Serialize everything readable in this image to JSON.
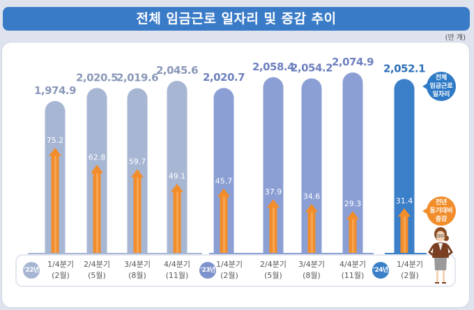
{
  "title": "전체 임금근로 일자리 및 증감 추이",
  "unit_label": "(만 개)",
  "legend": {
    "total_label": "전체\n임금근로\n일자리",
    "change_label": "전년\n동기대비\n증감"
  },
  "colors": {
    "title_bg": "#3a7bc8",
    "bar_2022": "#a7b6d3",
    "bar_2023": "#8b9fd4",
    "bar_2024": "#3a7fc7",
    "arrow": "#f28d2c",
    "total_value_text_2022": "#8a98b8",
    "total_value_text_2023": "#6e80be",
    "total_value_text_2024": "#2f6fb8"
  },
  "chart_data": {
    "type": "bar",
    "title": "전체 임금근로 일자리 및 증감 추이",
    "unit": "만 개",
    "xlabel": "",
    "ylabel": "",
    "categories": [
      "'22년 1/4분기 (2월)",
      "'22년 2/4분기 (5월)",
      "'22년 3/4분기 (8월)",
      "'22년 4/4분기 (11월)",
      "'23년 1/4분기 (2월)",
      "'23년 2/4분기 (5월)",
      "'23년 3/4분기 (8월)",
      "'23년 4/4분기 (11월)",
      "'24년 1/4분기 (2월)"
    ],
    "series": [
      {
        "name": "전체 임금근로 일자리",
        "values": [
          1974.9,
          2020.5,
          2019.6,
          2045.6,
          2020.7,
          2058.4,
          2054.2,
          2074.9,
          2052.1
        ],
        "labels": [
          "1,974.9",
          "2,020.5",
          "2,019.6",
          "2,045.6",
          "2,020.7",
          "2,058.4",
          "2,054.2",
          "2,074.9",
          "2,052.1"
        ]
      },
      {
        "name": "전년 동기대비 증감",
        "values": [
          75.2,
          62.8,
          59.7,
          49.1,
          45.7,
          37.9,
          34.6,
          29.3,
          31.4
        ],
        "labels": [
          "75.2",
          "62.8",
          "59.7",
          "49.1",
          "45.7",
          "37.9",
          "34.6",
          "29.3",
          "31.4"
        ]
      }
    ],
    "groups": [
      {
        "year": "'22년",
        "quarters": [
          {
            "q": "1/4분기",
            "m": "(2월)"
          },
          {
            "q": "2/4분기",
            "m": "(5월)"
          },
          {
            "q": "3/4분기",
            "m": "(8월)"
          },
          {
            "q": "4/4분기",
            "m": "(11월)"
          }
        ]
      },
      {
        "year": "'23년",
        "quarters": [
          {
            "q": "1/4분기",
            "m": "(2월)"
          },
          {
            "q": "2/4분기",
            "m": "(5월)"
          },
          {
            "q": "3/4분기",
            "m": "(8월)"
          },
          {
            "q": "4/4분기",
            "m": "(11월)"
          }
        ]
      },
      {
        "year": "'24년",
        "quarters": [
          {
            "q": "1/4분기",
            "m": "(2월)"
          }
        ]
      }
    ],
    "legend": [
      "전체 임금근로 일자리",
      "전년 동기대비 증감"
    ],
    "legend_position": "right",
    "grid": false
  }
}
